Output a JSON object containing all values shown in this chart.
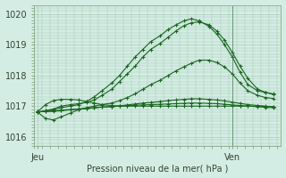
{
  "bg_color": "#d4ede4",
  "grid_color": "#a0c4b0",
  "line_color": "#1a6620",
  "xlabel": "Pression niveau de la mer( hPa )",
  "ylim": [
    1015.7,
    1020.3
  ],
  "yticks": [
    1016,
    1017,
    1018,
    1019,
    1020
  ],
  "xtick_labels": [
    "Jeu",
    "Ven"
  ],
  "xtick_positions": [
    0.0,
    1.0
  ],
  "vline_x": 1.0,
  "series": [
    {
      "x": [
        0.0,
        0.04,
        0.08,
        0.12,
        0.17,
        0.21,
        0.25,
        0.29,
        0.33,
        0.38,
        0.42,
        0.46,
        0.5,
        0.54,
        0.58,
        0.63,
        0.67,
        0.71,
        0.75,
        0.79,
        0.83,
        0.88,
        0.92,
        0.96,
        1.0,
        1.04,
        1.08,
        1.13,
        1.17,
        1.21
      ],
      "y": [
        1016.8,
        1016.85,
        1016.9,
        1016.95,
        1017.0,
        1017.05,
        1017.15,
        1017.3,
        1017.5,
        1017.75,
        1018.0,
        1018.3,
        1018.6,
        1018.85,
        1019.1,
        1019.3,
        1019.5,
        1019.65,
        1019.78,
        1019.85,
        1019.78,
        1019.6,
        1019.35,
        1019.0,
        1018.6,
        1018.1,
        1017.7,
        1017.5,
        1017.45,
        1017.4
      ]
    },
    {
      "x": [
        0.0,
        0.04,
        0.08,
        0.12,
        0.17,
        0.21,
        0.25,
        0.29,
        0.33,
        0.38,
        0.42,
        0.46,
        0.5,
        0.54,
        0.58,
        0.63,
        0.67,
        0.71,
        0.75,
        0.79,
        0.83,
        0.88,
        0.92,
        0.96,
        1.0,
        1.04,
        1.08,
        1.13,
        1.17,
        1.21
      ],
      "y": [
        1016.8,
        1016.85,
        1016.9,
        1017.0,
        1017.05,
        1017.08,
        1017.12,
        1017.2,
        1017.35,
        1017.55,
        1017.8,
        1018.05,
        1018.3,
        1018.6,
        1018.85,
        1019.05,
        1019.25,
        1019.45,
        1019.62,
        1019.72,
        1019.75,
        1019.65,
        1019.45,
        1019.15,
        1018.75,
        1018.3,
        1017.9,
        1017.55,
        1017.45,
        1017.38
      ]
    },
    {
      "x": [
        0.0,
        0.04,
        0.08,
        0.12,
        0.17,
        0.21,
        0.25,
        0.29,
        0.33,
        0.38,
        0.42,
        0.46,
        0.5,
        0.54,
        0.58,
        0.63,
        0.67,
        0.71,
        0.75,
        0.79,
        0.83,
        0.88,
        0.92,
        0.96,
        1.0,
        1.04,
        1.08,
        1.13,
        1.17,
        1.21
      ],
      "y": [
        1016.8,
        1016.6,
        1016.55,
        1016.65,
        1016.78,
        1016.88,
        1016.95,
        1017.0,
        1017.05,
        1017.1,
        1017.18,
        1017.28,
        1017.4,
        1017.55,
        1017.7,
        1017.85,
        1018.0,
        1018.15,
        1018.28,
        1018.4,
        1018.5,
        1018.5,
        1018.42,
        1018.28,
        1018.05,
        1017.75,
        1017.5,
        1017.35,
        1017.28,
        1017.25
      ]
    },
    {
      "x": [
        0.0,
        0.04,
        0.08,
        0.12,
        0.17,
        0.21,
        0.25,
        0.29,
        0.33,
        0.38,
        0.42,
        0.46,
        0.5,
        0.54,
        0.58,
        0.63,
        0.67,
        0.71,
        0.75,
        0.79,
        0.83,
        0.88,
        0.92,
        0.96,
        1.0,
        1.04,
        1.08,
        1.13,
        1.17,
        1.21
      ],
      "y": [
        1016.82,
        1016.82,
        1016.83,
        1016.85,
        1016.88,
        1016.9,
        1016.92,
        1016.94,
        1016.97,
        1016.99,
        1017.01,
        1017.04,
        1017.07,
        1017.1,
        1017.12,
        1017.15,
        1017.18,
        1017.2,
        1017.22,
        1017.24,
        1017.24,
        1017.22,
        1017.2,
        1017.17,
        1017.13,
        1017.09,
        1017.05,
        1017.02,
        1017.0,
        1016.98
      ]
    },
    {
      "x": [
        0.0,
        0.04,
        0.08,
        0.12,
        0.17,
        0.21,
        0.25,
        0.29,
        0.33,
        0.38,
        0.42,
        0.46,
        0.5,
        0.54,
        0.58,
        0.63,
        0.67,
        0.71,
        0.75,
        0.79,
        0.83,
        0.88,
        0.92,
        0.96,
        1.0,
        1.04,
        1.08,
        1.13,
        1.17,
        1.21
      ],
      "y": [
        1016.82,
        1016.83,
        1016.85,
        1016.87,
        1016.89,
        1016.91,
        1016.93,
        1016.95,
        1016.97,
        1016.98,
        1017.0,
        1017.01,
        1017.03,
        1017.04,
        1017.05,
        1017.06,
        1017.07,
        1017.08,
        1017.09,
        1017.1,
        1017.1,
        1017.09,
        1017.08,
        1017.06,
        1017.04,
        1017.02,
        1017.0,
        1016.98,
        1016.96,
        1016.95
      ]
    },
    {
      "x": [
        0.0,
        0.04,
        0.08,
        0.12,
        0.17,
        0.21,
        0.25,
        0.29,
        0.33,
        0.38,
        0.42,
        0.46,
        0.5,
        0.54,
        0.58,
        0.63,
        0.67,
        0.71,
        0.75,
        0.79,
        0.83,
        0.88,
        0.92,
        0.96,
        1.0,
        1.04,
        1.08,
        1.13,
        1.17,
        1.21
      ],
      "y": [
        1016.82,
        1017.05,
        1017.18,
        1017.22,
        1017.22,
        1017.2,
        1017.15,
        1017.1,
        1017.05,
        1017.02,
        1017.0,
        1017.0,
        1017.0,
        1017.0,
        1017.0,
        1017.0,
        1017.0,
        1017.0,
        1017.0,
        1017.0,
        1017.0,
        1017.0,
        1017.0,
        1017.0,
        1017.0,
        1017.0,
        1017.0,
        1017.0,
        1016.99,
        1016.98
      ]
    }
  ]
}
